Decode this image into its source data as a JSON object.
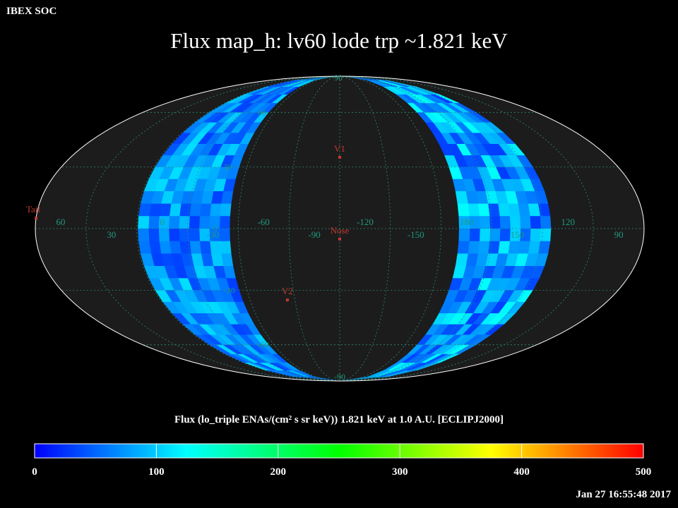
{
  "header": {
    "corner_label": "IBEX SOC",
    "title": "Flux   map_h: lv60 lode trp ~1.821 keV",
    "timestamp": "Jan 27 16:55:48 2017"
  },
  "colorbar": {
    "label": "Flux (lo_triple ENAs/(cm² s sr keV))  1.821 keV at 1.0 A.U. [ECLIPJ2000]",
    "ticks": [
      "0",
      "100",
      "200",
      "300",
      "400",
      "500"
    ],
    "colors": [
      "#0000ff",
      "#00ffff",
      "#00ff00",
      "#ffff00",
      "#ff0000"
    ]
  },
  "chart_data": {
    "type": "heatmap",
    "projection": "mollweide (ecliptic J2000)",
    "colorscale_range": [
      0,
      500
    ],
    "map_background": "#1c1c1c",
    "grid": true,
    "latitude_labels": [
      {
        "text": "60",
        "lat": 60
      },
      {
        "text": "30",
        "lat": 30
      },
      {
        "text": "0",
        "lat": 0
      },
      {
        "text": "-30",
        "lat": -30
      },
      {
        "text": "-60",
        "lat": -60
      }
    ],
    "top_pole_label": "90",
    "bottom_pole_label": "-90",
    "longitude_labels": [
      "60",
      "30",
      "0",
      "-30",
      "-60",
      "-90",
      "-120",
      "-150",
      "180",
      "150",
      "120",
      "90"
    ],
    "markers": [
      {
        "name": "V1",
        "lon": -105,
        "lat": 35
      },
      {
        "name": "Nose",
        "lon": -105,
        "lat": -5
      },
      {
        "name": "V2",
        "lon": -70,
        "lat": -35
      },
      {
        "name": "Tail",
        "lon": 75,
        "lat": 5
      }
    ],
    "bands": [
      {
        "lon_range": [
          -40,
          10
        ],
        "flux_range": [
          30,
          110
        ]
      },
      {
        "lon_range": [
          130,
          180
        ],
        "flux_range": [
          30,
          130
        ]
      }
    ]
  }
}
